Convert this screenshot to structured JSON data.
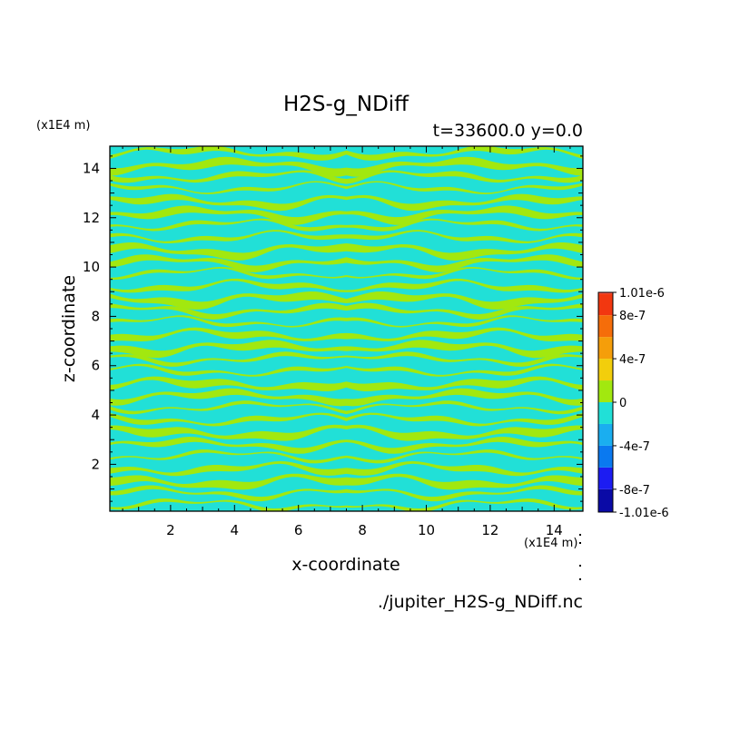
{
  "chart_data": {
    "type": "heatmap",
    "title": "H2S-g_NDiff",
    "subtitle": "t=33600.0 y=0.0",
    "xlabel": "x-coordinate",
    "ylabel": "z-coordinate",
    "x_unit": "(x1E4 m)",
    "z_unit": "(x1E4 m)",
    "xlim": [
      0.1,
      14.9
    ],
    "ylim": [
      0.1,
      14.9
    ],
    "x_ticks": [
      2,
      4,
      6,
      8,
      10,
      12,
      14
    ],
    "y_ticks": [
      2,
      4,
      6,
      8,
      10,
      12,
      14
    ],
    "source_file": "./jupiter_H2S-g_NDiff.nc",
    "colorbar": {
      "min": -1.01e-06,
      "max": 1.01e-06,
      "labels": [
        "1.01e-6",
        "8e-7",
        "4e-7",
        "0",
        "-4e-7",
        "-8e-7",
        "-1.01e-6"
      ],
      "label_values": [
        1.01e-06,
        8e-07,
        4e-07,
        0,
        -4e-07,
        -8e-07,
        -1.01e-06
      ],
      "levels": [
        {
          "from": -1.01e-06,
          "to": -8e-07,
          "color": "#0a0aa6"
        },
        {
          "from": -8e-07,
          "to": -6e-07,
          "color": "#1c1cf2"
        },
        {
          "from": -6e-07,
          "to": -4e-07,
          "color": "#0a79f0"
        },
        {
          "from": -4e-07,
          "to": -2e-07,
          "color": "#1aaef0"
        },
        {
          "from": -2e-07,
          "to": 0,
          "color": "#21e0d7"
        },
        {
          "from": 0,
          "to": 2e-07,
          "color": "#a2e80f"
        },
        {
          "from": 2e-07,
          "to": 4e-07,
          "color": "#f2ce0c"
        },
        {
          "from": 4e-07,
          "to": 6e-07,
          "color": "#f59e0a"
        },
        {
          "from": 6e-07,
          "to": 8e-07,
          "color": "#f56d0a"
        },
        {
          "from": 8e-07,
          "to": 1e-06,
          "color": "#f23710"
        },
        {
          "from": 1e-06,
          "to": 1.01e-06,
          "color": "#f54545"
        }
      ]
    },
    "field_colors": {
      "negative": "#21e0d7",
      "positive": "#a2e80f"
    }
  }
}
